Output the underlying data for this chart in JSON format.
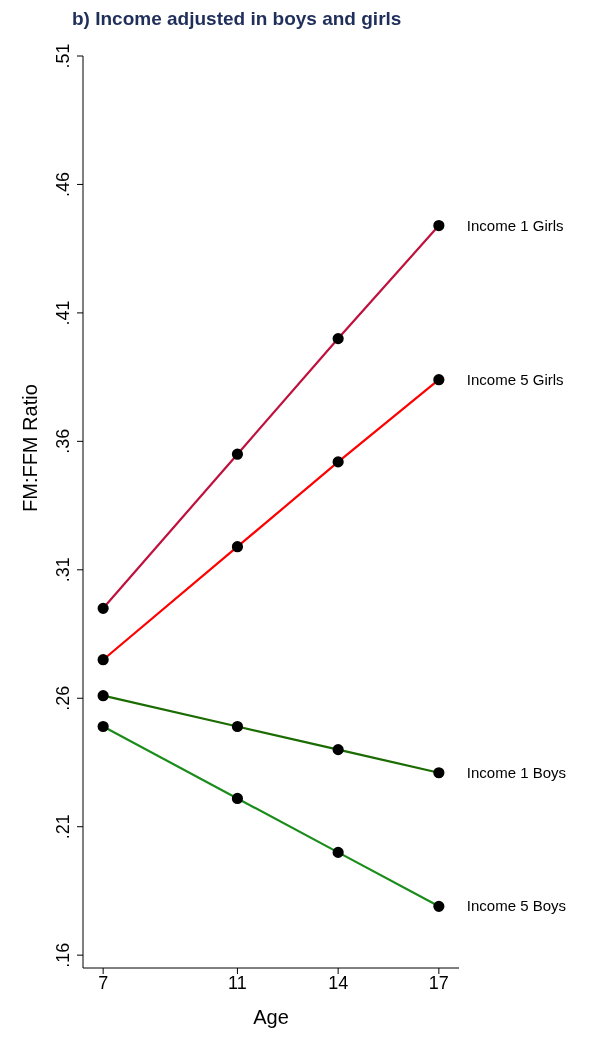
{
  "chart_data": {
    "type": "line",
    "title": "b) Income adjusted in boys and girls",
    "xlabel": "Age",
    "ylabel": "FM:FFM Ratio",
    "x": [
      7,
      11,
      14,
      17
    ],
    "series": [
      {
        "name": "Income 1 Girls",
        "color": "#c0103c",
        "values": [
          0.295,
          0.355,
          0.4,
          0.444
        ]
      },
      {
        "name": "Income 5 Girls",
        "color": "#ff0000",
        "values": [
          0.275,
          0.319,
          0.352,
          0.384
        ]
      },
      {
        "name": "Income 1 Boys",
        "color": "#1a6b00",
        "values": [
          0.261,
          0.249,
          0.24,
          0.231
        ]
      },
      {
        "name": "Income 5 Boys",
        "color": "#1a8c1a",
        "values": [
          0.249,
          0.221,
          0.2,
          0.179
        ]
      }
    ],
    "xlim": [
      6.4,
      17.6
    ],
    "xticks": [
      7,
      11,
      14,
      17
    ],
    "ylim": [
      0.155,
      0.51
    ],
    "yticks": [
      {
        "value": 0.16,
        "label": ".16"
      },
      {
        "value": 0.21,
        "label": ".21"
      },
      {
        "value": 0.26,
        "label": ".26"
      },
      {
        "value": 0.31,
        "label": ".31"
      },
      {
        "value": 0.36,
        "label": ".36"
      },
      {
        "value": 0.41,
        "label": ".41"
      },
      {
        "value": 0.46,
        "label": ".46"
      },
      {
        "value": 0.51,
        "label": ".51"
      }
    ],
    "grid": false,
    "legend": false,
    "marker": "circle",
    "line_style": "solid"
  }
}
